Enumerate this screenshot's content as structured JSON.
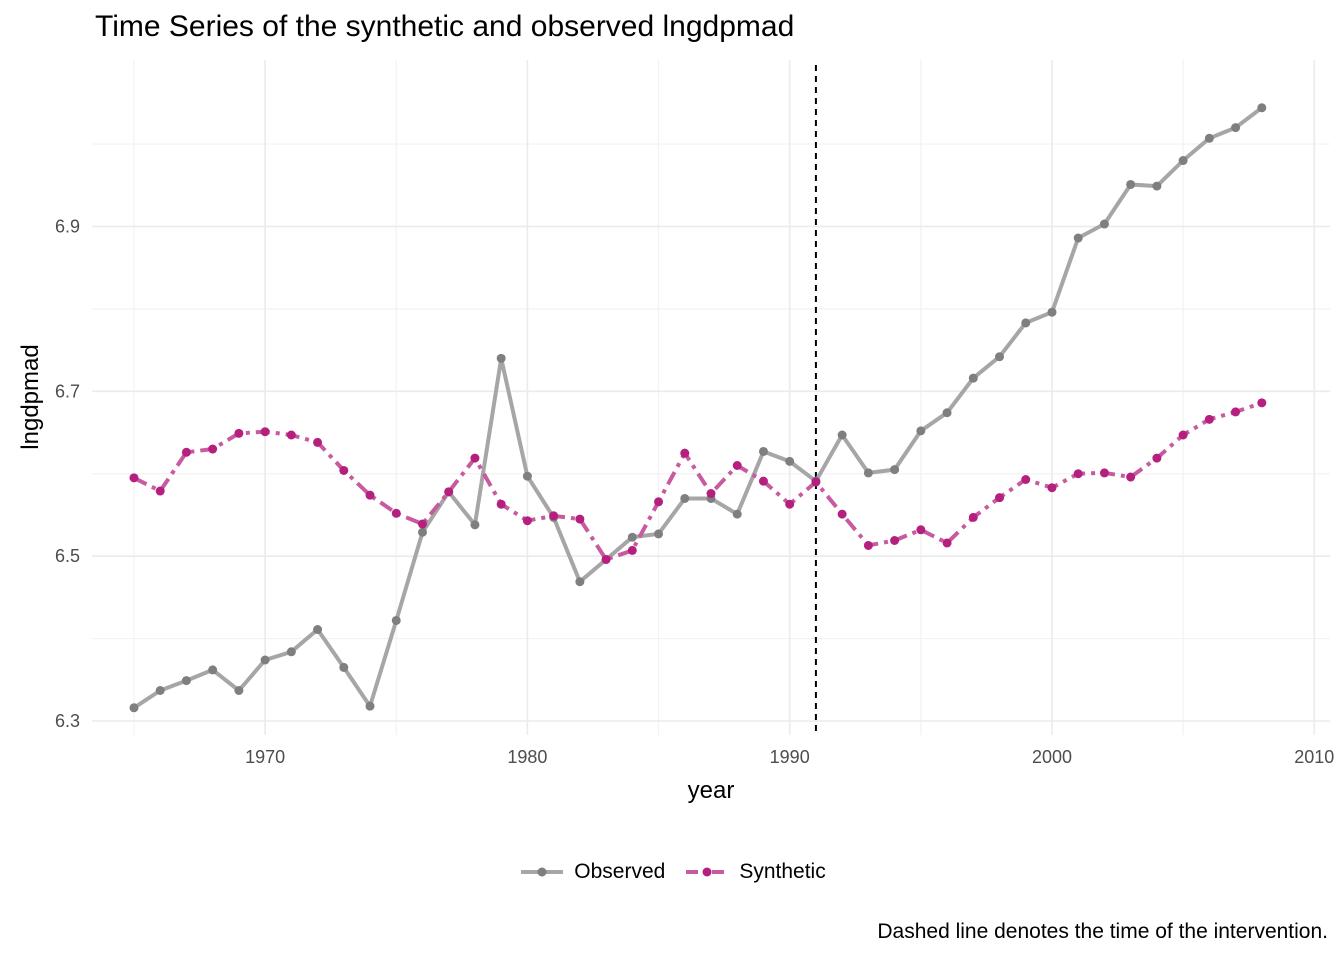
{
  "chart_data": {
    "type": "line",
    "title": "Time Series of the synthetic and observed lngdpmad",
    "xlabel": "year",
    "ylabel": "lngdpmad",
    "caption": "Dashed line denotes the time of the intervention.",
    "xlim": [
      1963.4,
      2010.6
    ],
    "ylim": [
      6.283,
      7.102
    ],
    "x_ticks": [
      1970,
      1980,
      1990,
      2000,
      2010
    ],
    "y_ticks": [
      6.3,
      6.5,
      6.7,
      6.9
    ],
    "grid": true,
    "legend_position": "bottom",
    "intervention_year": 1991,
    "x": [
      1965,
      1966,
      1967,
      1968,
      1969,
      1970,
      1971,
      1972,
      1973,
      1974,
      1975,
      1976,
      1977,
      1978,
      1979,
      1980,
      1981,
      1982,
      1983,
      1984,
      1985,
      1986,
      1987,
      1988,
      1989,
      1990,
      1991,
      1992,
      1993,
      1994,
      1995,
      1996,
      1997,
      1998,
      1999,
      2000,
      2001,
      2002,
      2003,
      2004,
      2005,
      2006,
      2007,
      2008
    ],
    "series": [
      {
        "name": "Observed",
        "color": "#a6a6a6",
        "point_color": "#7f7f7f",
        "line_style": "solid",
        "values": [
          6.316,
          6.337,
          6.349,
          6.362,
          6.337,
          6.374,
          6.384,
          6.411,
          6.365,
          6.318,
          6.422,
          6.529,
          6.578,
          6.538,
          6.74,
          6.597,
          6.547,
          6.469,
          6.496,
          6.523,
          6.527,
          6.57,
          6.57,
          6.551,
          6.627,
          6.615,
          6.591,
          6.647,
          6.601,
          6.605,
          6.652,
          6.674,
          6.716,
          6.742,
          6.783,
          6.796,
          6.886,
          6.903,
          6.951,
          6.949,
          6.98,
          7.007,
          7.02,
          7.044
        ]
      },
      {
        "name": "Synthetic",
        "color": "#c85aa0",
        "point_color": "#b5207f",
        "line_style": "dashed",
        "values": [
          6.595,
          6.579,
          6.626,
          6.63,
          6.649,
          6.651,
          6.647,
          6.638,
          6.604,
          6.574,
          6.552,
          6.539,
          6.578,
          6.619,
          6.563,
          6.543,
          6.549,
          6.545,
          6.496,
          6.507,
          6.566,
          6.625,
          6.576,
          6.61,
          6.591,
          6.563,
          6.59,
          6.551,
          6.513,
          6.519,
          6.532,
          6.516,
          6.547,
          6.571,
          6.593,
          6.583,
          6.6,
          6.601,
          6.596,
          6.619,
          6.647,
          6.666,
          6.675,
          6.686
        ]
      }
    ]
  },
  "colors": {
    "grid_major": "#ebebeb",
    "grid_minor": "#f2f2f2",
    "intervention_line": "#000000"
  }
}
